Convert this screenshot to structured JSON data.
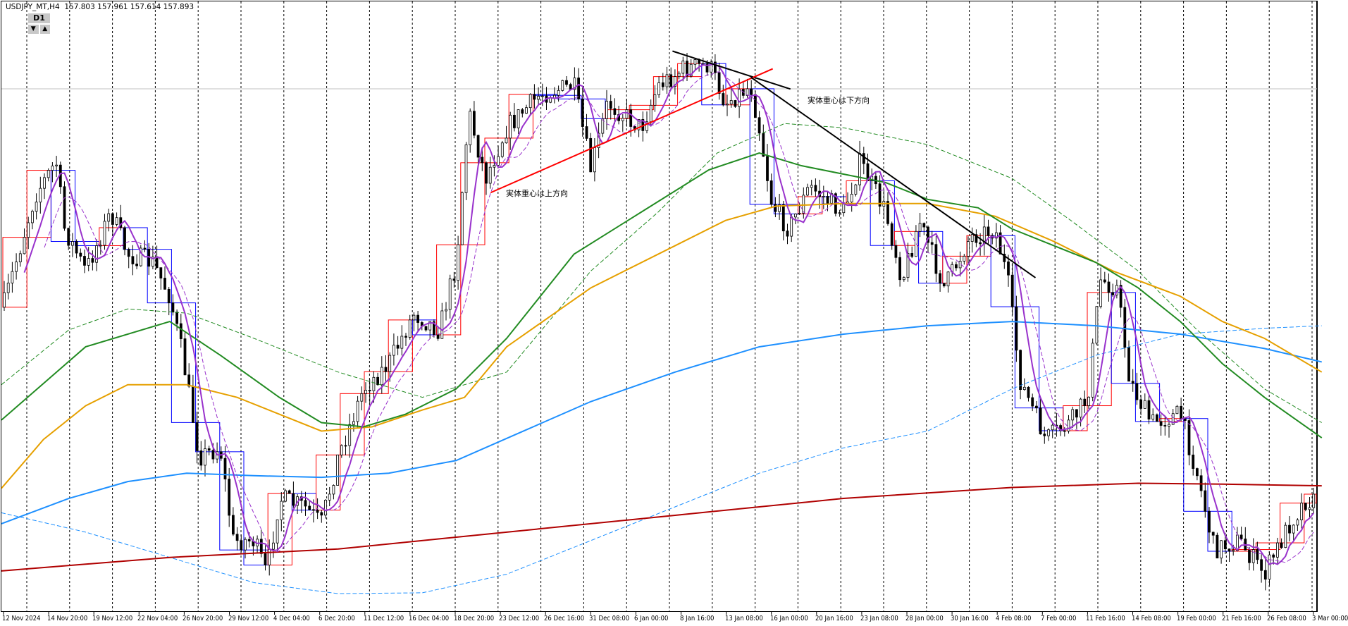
{
  "header": {
    "symbol": "USDJPY_MT,H4",
    "open": "157.803",
    "high": "157.961",
    "low": "157.614",
    "close": "157.893"
  },
  "timeframe_widget": {
    "label": "D1",
    "down": "▼",
    "up": "▲"
  },
  "annotations": [
    "実体重心は上方向",
    "実体重心は下方向"
  ],
  "chart_data": {
    "type": "candlestick",
    "symbol": "USDJPY_MT",
    "timeframe": "H4",
    "overlay_timeframe": "D1",
    "x_tick_labels": [
      "12 Nov 2024",
      "14 Nov 20:00",
      "19 Nov 12:00",
      "22 Nov 04:00",
      "26 Nov 20:00",
      "29 Nov 12:00",
      "4 Dec 04:00",
      "6 Dec 20:00",
      "11 Dec 12:00",
      "16 Dec 04:00",
      "18 Dec 20:00",
      "23 Dec 12:00",
      "26 Dec 16:00",
      "31 Dec 08:00",
      "6 Jan 00:00",
      "8 Jan 16:00",
      "13 Jan 08:00",
      "16 Jan 00:00",
      "20 Jan 16:00",
      "23 Jan 08:00",
      "28 Jan 00:00",
      "30 Jan 16:00",
      "4 Feb 08:00",
      "7 Feb 00:00",
      "11 Feb 16:00",
      "14 Feb 08:00",
      "19 Feb 00:00",
      "21 Feb 16:00",
      "26 Feb 08:00",
      "3 Mar 00:00"
    ],
    "last_price": 157.893,
    "grid": "vertical dashed",
    "colors": {
      "h4_candle": "#000000",
      "d1_up_box": "#ff0000",
      "d1_down_box": "#0000ff",
      "ma_fast": "#9932cc",
      "ma_green": "#228b22",
      "ma_orange": "#e6a000",
      "ma_blue": "#1e90ff",
      "ma_darkred": "#b00000",
      "trend_up": "#ff0000",
      "trend_down": "#000000",
      "price_line": "#c0c0c0"
    }
  }
}
